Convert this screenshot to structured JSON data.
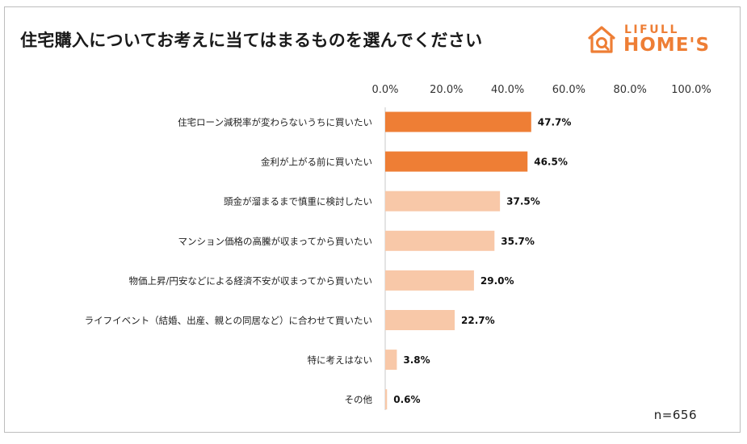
{
  "title": "住宅購入についてお考えに当てはまるものを選んでください",
  "logo": {
    "top_text": "LIFULL",
    "main_text": "HOME'S",
    "icon": "house-icon",
    "color": "#ee7e35"
  },
  "sample_note": "n=656",
  "chart_data": {
    "type": "bar",
    "orientation": "horizontal",
    "title": "住宅購入についてお考えに当てはまるものを選んでください",
    "xlim": [
      0,
      100
    ],
    "tick_labels": [
      "0.0%",
      "20.0%",
      "40.0%",
      "60.0%",
      "80.0%",
      "100.0%"
    ],
    "axis_position": "top",
    "grid": false,
    "categories": [
      "住宅ローン減税率が変わらないうちに買いたい",
      "金利が上がる前に買いたい",
      "頭金が溜まるまで慎重に検討したい",
      "マンション価格の高騰が収まってから買いたい",
      "物価上昇/円安などによる経済不安が収まってから買いたい",
      "ライフイベント（結婚、出産、親との同居など）に合わせて買いたい",
      "特に考えはない",
      "その他"
    ],
    "values": [
      47.7,
      46.5,
      37.5,
      35.7,
      29.0,
      22.7,
      3.8,
      0.6
    ],
    "value_labels": [
      "47.7%",
      "46.5%",
      "37.5%",
      "35.7%",
      "29.0%",
      "22.7%",
      "3.8%",
      "0.6%"
    ],
    "highlight_count": 2,
    "colors": {
      "highlight": "#ee7e35",
      "normal": "#f8c8a8"
    }
  }
}
